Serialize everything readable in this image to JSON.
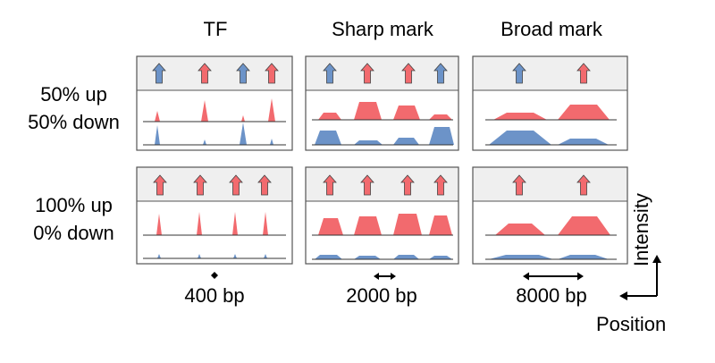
{
  "columns": [
    "TF",
    "Sharp mark",
    "Broad mark"
  ],
  "rows": [
    {
      "line1": "50% up",
      "line2": "50% down"
    },
    {
      "line1": "100% up",
      "line2": "0% down"
    }
  ],
  "scale_labels": [
    "400 bp",
    "2000 bp",
    "8000 bp"
  ],
  "axis_labels": {
    "x": "Position",
    "y": "Intensity"
  },
  "colors": {
    "up": "#f26a6e",
    "down": "#6c93c8",
    "panel_header": "#efefef",
    "border": "#555555"
  },
  "icons": {
    "up_arrow": "arrow-up-icon"
  }
}
